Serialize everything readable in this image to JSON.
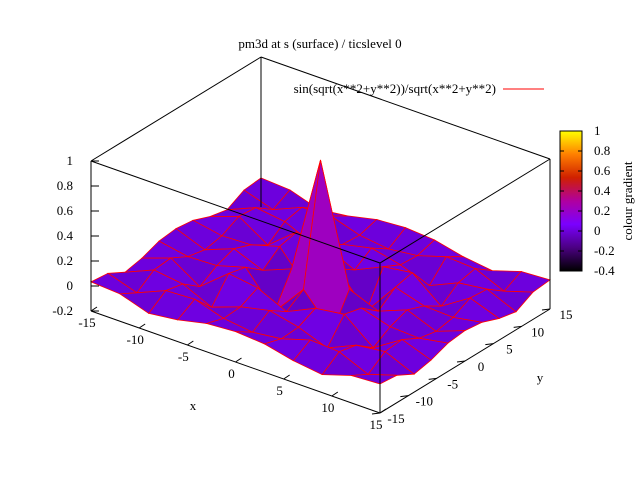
{
  "chart_data": {
    "type": "surface",
    "title": "pm3d at s (surface) / ticslevel 0",
    "function": "sin(sqrt(x**2+y**2))/sqrt(x**2+y**2)",
    "legend": {
      "label": "sin(sqrt(x**2+y**2))/sqrt(x**2+y**2)",
      "color": "#ff0000",
      "position": "top-right"
    },
    "xlabel": "x",
    "ylabel": "y",
    "zlabel": "",
    "xlim": [
      -15,
      15
    ],
    "ylim": [
      -15,
      15
    ],
    "zlim": [
      -0.2,
      1
    ],
    "cblim": [
      -0.4,
      1
    ],
    "xticks": [
      "-15",
      "-10",
      "-5",
      "0",
      "5",
      "10",
      "15"
    ],
    "yticks": [
      "-15",
      "-10",
      "-5",
      "0",
      "5",
      "10",
      "15"
    ],
    "zticks": [
      "-0.2",
      "0",
      "0.2",
      "0.4",
      "0.6",
      "0.8",
      "1"
    ],
    "cbticks": [
      "-0.4",
      "-0.2",
      "0",
      "0.2",
      "0.4",
      "0.6",
      "0.8",
      "1"
    ],
    "colorbar_label": "colour gradient",
    "grid_points": 11,
    "palette": [
      "#000000",
      "#4b0082",
      "#7a00ff",
      "#b000a0",
      "#d02000",
      "#ff8000",
      "#ffff00"
    ],
    "mesh_color": "#ff0000"
  }
}
